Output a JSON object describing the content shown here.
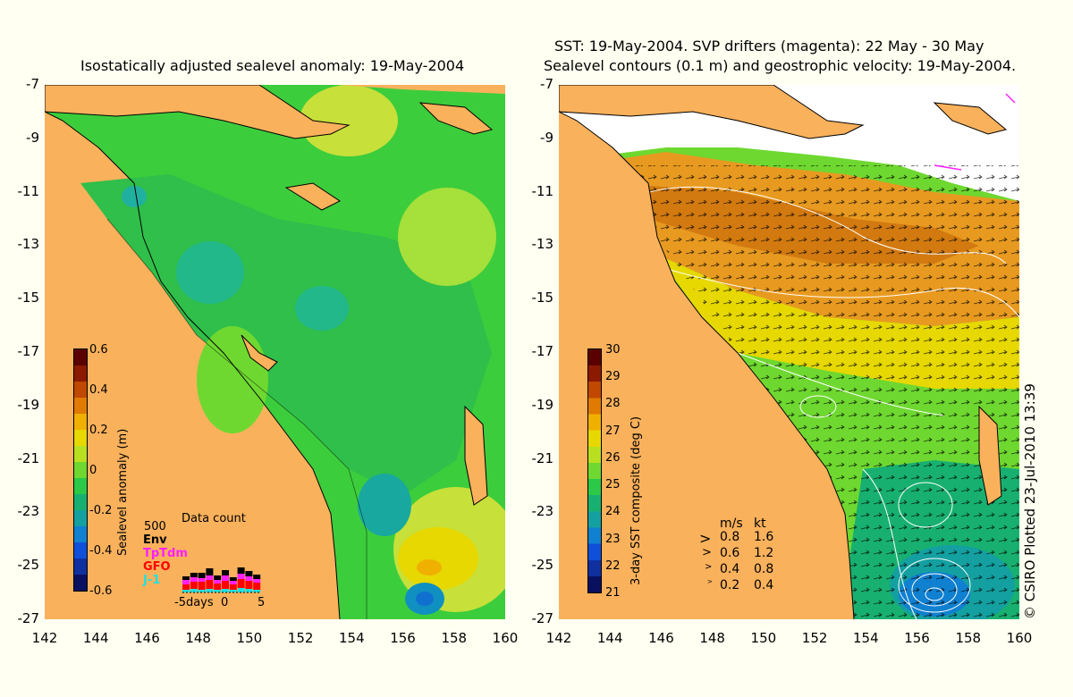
{
  "left_panel": {
    "title": "Isostatically adjusted sealevel anomaly: 19-May-2004",
    "colorbar": {
      "label": "Sealevel anomaly (m)",
      "ticks": [
        "0.6",
        "0.4",
        "0.2",
        "0",
        "-0.2",
        "-0.4",
        "-0.6"
      ],
      "colors": [
        "#5a0000",
        "#8b1a00",
        "#c04800",
        "#e07a00",
        "#f0b000",
        "#e6d800",
        "#b8e020",
        "#6ed830",
        "#2cc848",
        "#18b070",
        "#14a0a0",
        "#1080d0",
        "#1050d8",
        "#1030a0",
        "#0a1060"
      ]
    },
    "data_count": {
      "title": "Data count",
      "scale_max": "500",
      "legend": [
        {
          "label": "Env",
          "color": "#000000"
        },
        {
          "label": "TpTdm",
          "color": "#ff20ff"
        },
        {
          "label": "GFO",
          "color": "#ff0000"
        },
        {
          "label": "J-1",
          "color": "#20e0e0"
        }
      ],
      "x_label_left": "-5days",
      "x_label_mid": "0",
      "x_label_right": "5"
    }
  },
  "right_panel": {
    "title_line1": "SST: 19-May-2004. SVP drifters (magenta): 22 May - 30 May",
    "title_line2": "Sealevel contours (0.1 m) and geostrophic velocity: 19-May-2004.",
    "colorbar": {
      "label": "3-day SST composite (deg C)",
      "ticks": [
        "30",
        "29",
        "28",
        "27",
        "26",
        "25",
        "24",
        "23",
        "22",
        "21"
      ],
      "colors": [
        "#5a0000",
        "#8b1a00",
        "#c04800",
        "#e07a00",
        "#f0b000",
        "#e6d800",
        "#b8e020",
        "#6ed830",
        "#2cc848",
        "#18b070",
        "#14a0a0",
        "#1080d0",
        "#1050d8",
        "#1030a0",
        "#0a1060"
      ]
    },
    "velocity_key": {
      "header_ms": "m/s",
      "header_kt": "kt",
      "rows": [
        {
          "ms": "0.8",
          "kt": "1.6"
        },
        {
          "ms": "0.6",
          "kt": "1.2"
        },
        {
          "ms": "0.4",
          "kt": "0.8"
        },
        {
          "ms": "0.2",
          "kt": "0.4"
        }
      ]
    }
  },
  "axes": {
    "y_ticks": [
      "-7",
      "-9",
      "-11",
      "-13",
      "-15",
      "-17",
      "-19",
      "-21",
      "-23",
      "-25",
      "-27"
    ],
    "x_ticks": [
      "142",
      "144",
      "146",
      "148",
      "150",
      "152",
      "154",
      "156",
      "158",
      "160"
    ]
  },
  "credit": "© CSIRO Plotted 23-Jul-2010 13:39",
  "colors": {
    "background": "#fffff2",
    "land": "#f9b15c",
    "sea_green": "#3ccd3c",
    "contour": "#ffffff",
    "drifters": "#ff20ff"
  }
}
